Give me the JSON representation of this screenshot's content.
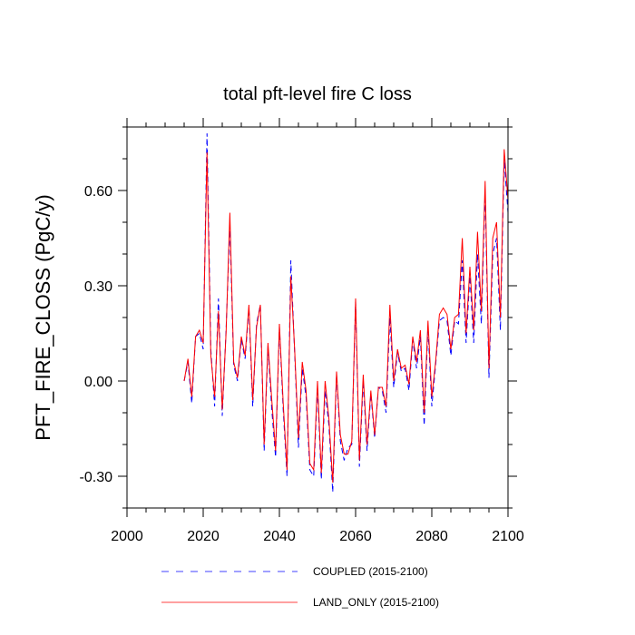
{
  "chart_data": {
    "type": "line",
    "title": "total pft-level fire C loss",
    "xlabel": "",
    "ylabel": "PFT_FIRE_CLOSS  (PgC/y)",
    "xlim": [
      2000,
      2100
    ],
    "ylim": [
      -0.4,
      0.8
    ],
    "xticks": [
      2000,
      2020,
      2040,
      2060,
      2080,
      2100
    ],
    "yticks": [
      -0.3,
      0.0,
      0.3,
      0.6
    ],
    "xtick_labels": [
      "2000",
      "2020",
      "2040",
      "2060",
      "2080",
      "2100"
    ],
    "ytick_labels": [
      "-0.30",
      "0.00",
      "0.30",
      "0.60"
    ],
    "x": [
      2015,
      2016,
      2017,
      2018,
      2019,
      2020,
      2021,
      2022,
      2023,
      2024,
      2025,
      2026,
      2027,
      2028,
      2029,
      2030,
      2031,
      2032,
      2033,
      2034,
      2035,
      2036,
      2037,
      2038,
      2039,
      2040,
      2041,
      2042,
      2043,
      2044,
      2045,
      2046,
      2047,
      2048,
      2049,
      2050,
      2051,
      2052,
      2053,
      2054,
      2055,
      2056,
      2057,
      2058,
      2059,
      2060,
      2061,
      2062,
      2063,
      2064,
      2065,
      2066,
      2067,
      2068,
      2069,
      2070,
      2071,
      2072,
      2073,
      2074,
      2075,
      2076,
      2077,
      2078,
      2079,
      2080,
      2081,
      2082,
      2083,
      2084,
      2085,
      2086,
      2087,
      2088,
      2089,
      2090,
      2091,
      2092,
      2093,
      2094,
      2095,
      2096,
      2097,
      2098,
      2099,
      2100
    ],
    "series": [
      {
        "name": "COUPLED (2015-2100)",
        "color": "#0000ff",
        "dash": "dashed",
        "values": [
          0.0,
          0.06,
          -0.07,
          0.14,
          0.15,
          0.1,
          0.78,
          0.1,
          -0.08,
          0.26,
          -0.11,
          0.16,
          0.49,
          0.05,
          0.0,
          0.13,
          0.07,
          0.23,
          -0.08,
          0.18,
          0.24,
          -0.22,
          0.11,
          -0.09,
          -0.24,
          0.17,
          -0.09,
          -0.3,
          0.38,
          0.09,
          -0.21,
          0.04,
          -0.05,
          -0.28,
          -0.3,
          -0.02,
          -0.31,
          -0.03,
          -0.14,
          -0.35,
          0.02,
          -0.19,
          -0.25,
          -0.21,
          -0.2,
          0.25,
          -0.27,
          0.0,
          -0.22,
          -0.04,
          -0.18,
          -0.02,
          -0.03,
          -0.1,
          0.2,
          -0.02,
          0.09,
          0.03,
          0.04,
          -0.03,
          0.13,
          0.04,
          0.14,
          -0.14,
          0.17,
          -0.08,
          0.05,
          0.19,
          0.2,
          0.19,
          0.08,
          0.19,
          0.18,
          0.38,
          0.12,
          0.33,
          0.12,
          0.4,
          0.18,
          0.6,
          0.01,
          0.4,
          0.45,
          0.16,
          0.7,
          0.53
        ]
      },
      {
        "name": "LAND_ONLY (2015-2100)",
        "color": "#ff0000",
        "dash": "solid",
        "values": [
          0.0,
          0.07,
          -0.05,
          0.14,
          0.16,
          0.12,
          0.72,
          0.08,
          -0.05,
          0.22,
          -0.09,
          0.15,
          0.53,
          0.06,
          0.01,
          0.14,
          0.08,
          0.24,
          -0.06,
          0.17,
          0.24,
          -0.2,
          0.12,
          -0.06,
          -0.22,
          0.18,
          -0.07,
          -0.28,
          0.33,
          0.1,
          -0.18,
          0.06,
          -0.03,
          -0.26,
          -0.28,
          0.0,
          -0.29,
          0.0,
          -0.12,
          -0.32,
          0.03,
          -0.17,
          -0.23,
          -0.23,
          -0.19,
          0.26,
          -0.25,
          0.02,
          -0.2,
          -0.03,
          -0.17,
          -0.02,
          -0.02,
          -0.08,
          0.24,
          0.0,
          0.1,
          0.04,
          0.05,
          -0.01,
          0.14,
          0.06,
          0.16,
          -0.1,
          0.19,
          -0.05,
          0.06,
          0.21,
          0.23,
          0.21,
          0.1,
          0.2,
          0.21,
          0.45,
          0.15,
          0.36,
          0.16,
          0.47,
          0.22,
          0.63,
          0.04,
          0.45,
          0.5,
          0.2,
          0.73,
          0.57
        ]
      }
    ],
    "legend": {
      "position": "bottom-center",
      "entries": [
        "COUPLED (2015-2100)",
        "LAND_ONLY (2015-2100)"
      ]
    }
  }
}
